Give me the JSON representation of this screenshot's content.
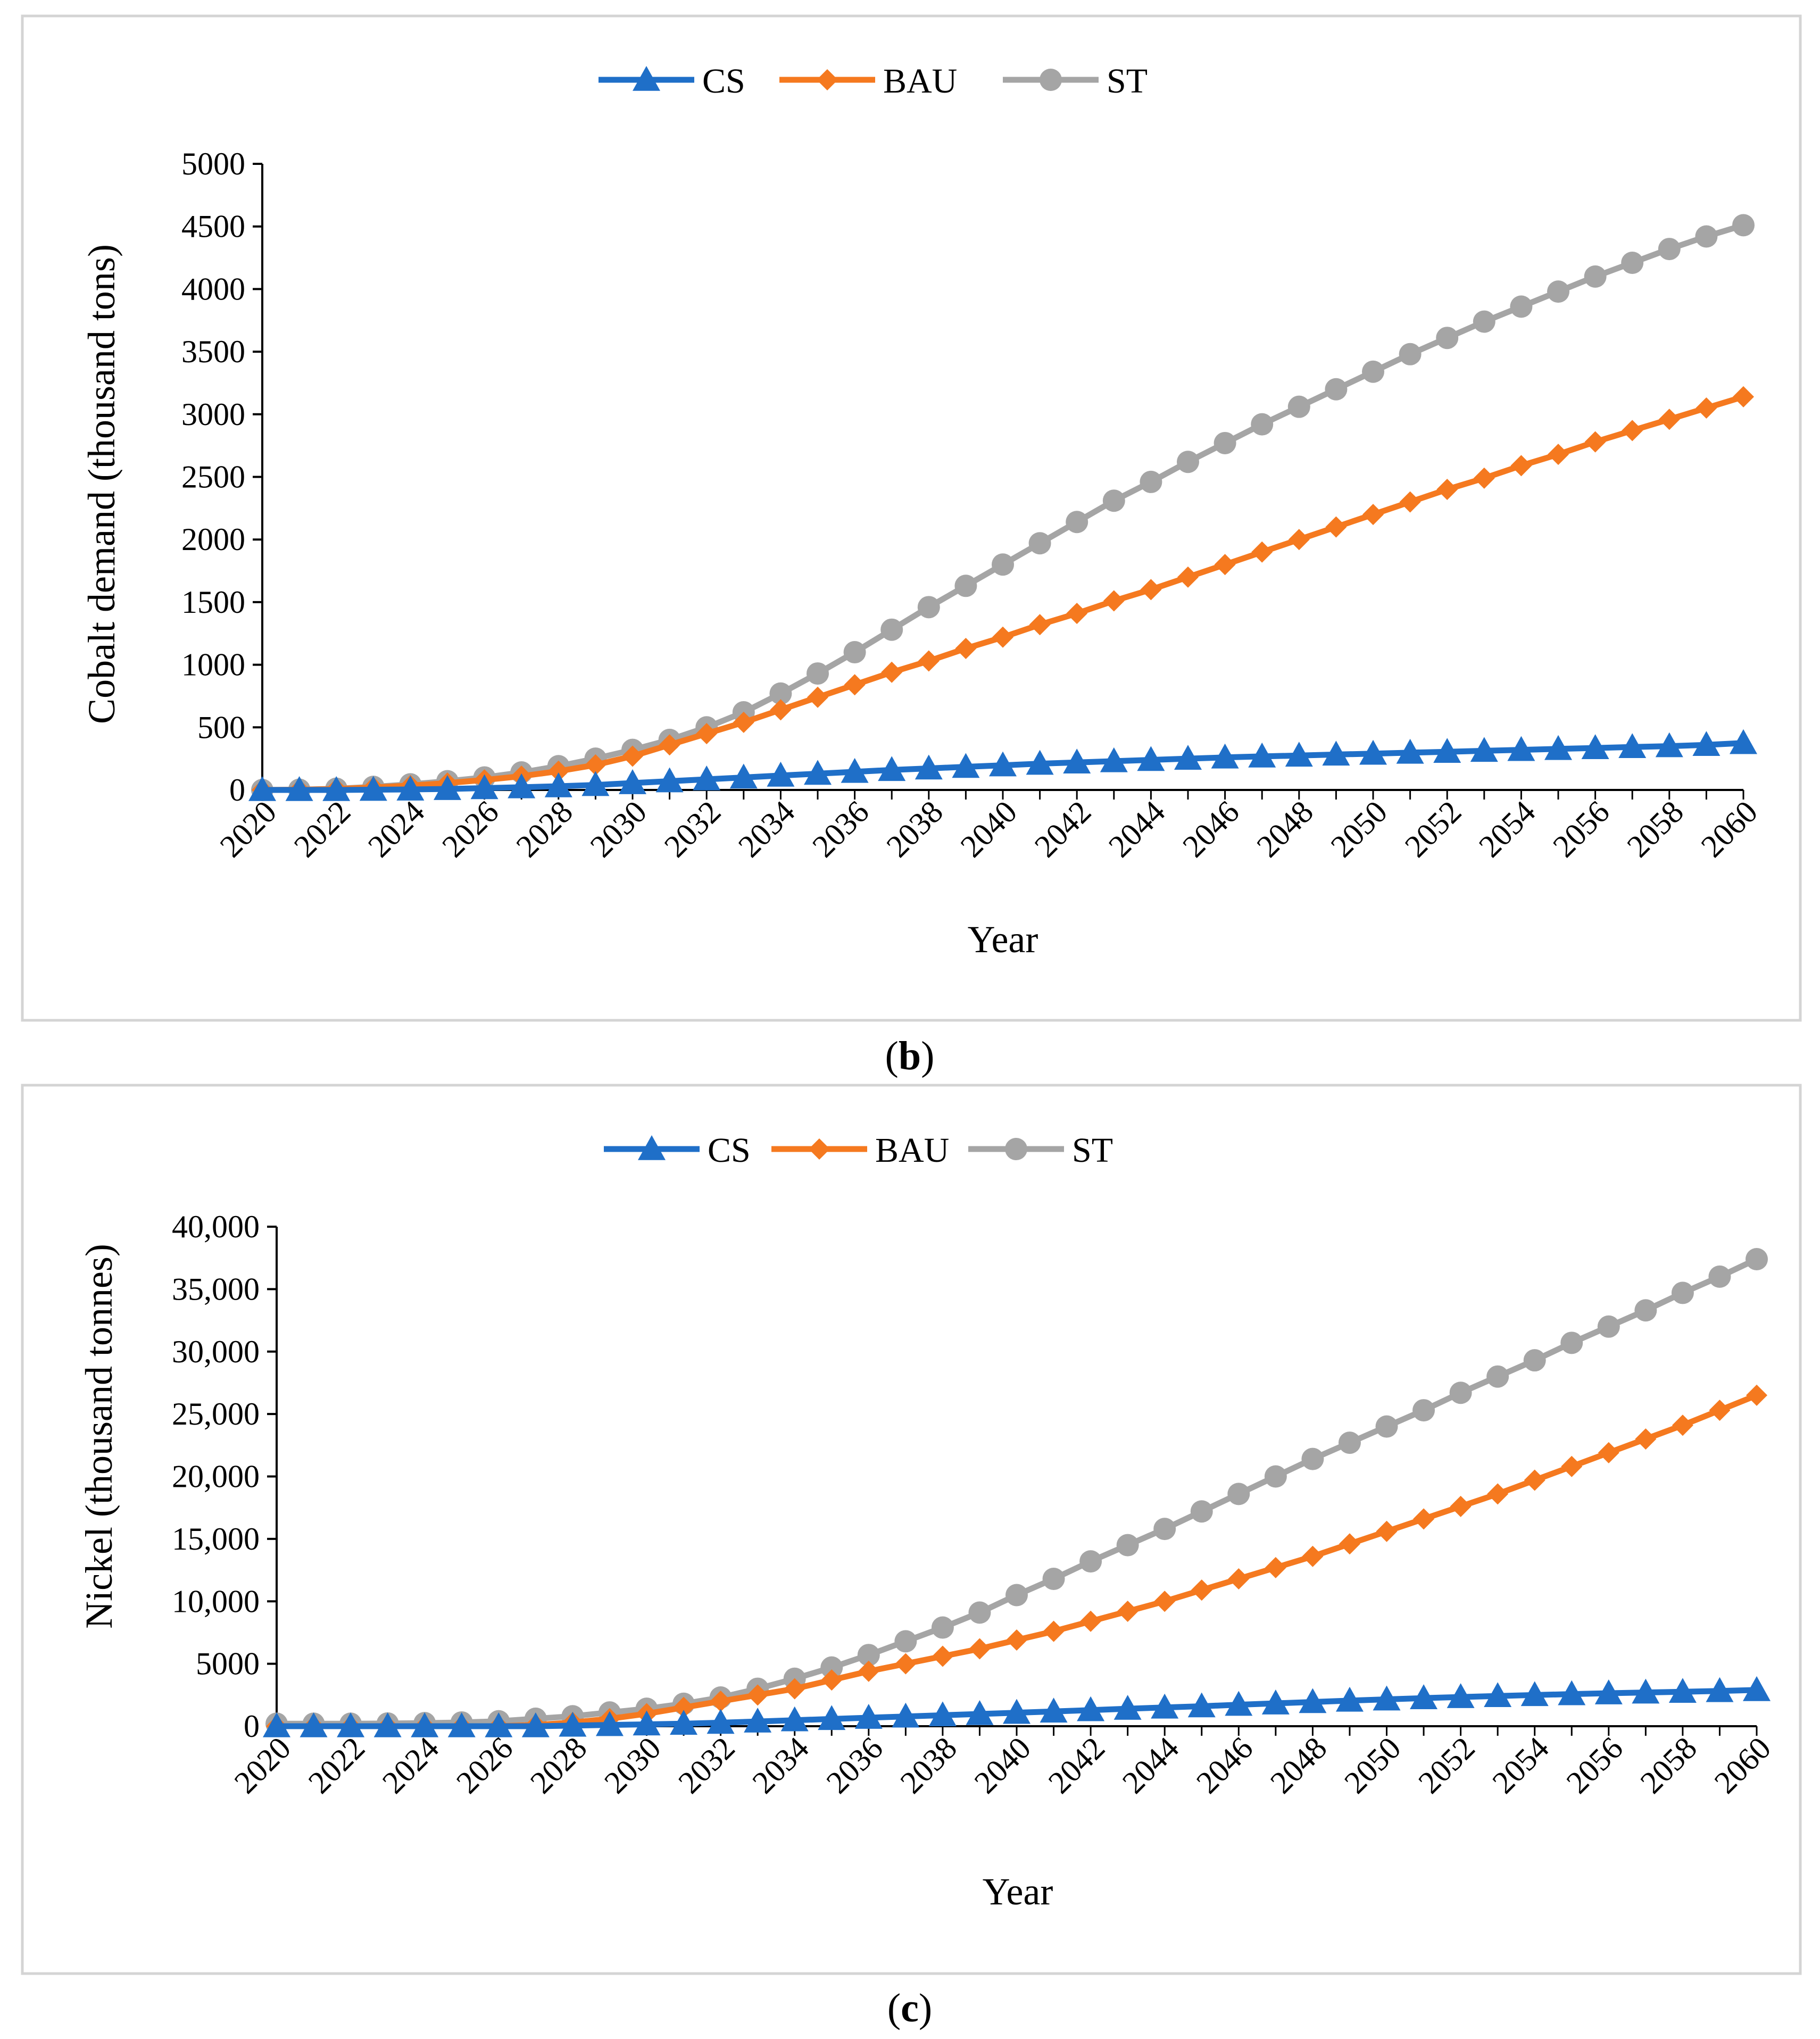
{
  "chart_data": [
    {
      "type": "line",
      "panel_label": "b",
      "x": [
        2020,
        2021,
        2022,
        2023,
        2024,
        2025,
        2026,
        2027,
        2028,
        2029,
        2030,
        2031,
        2032,
        2033,
        2034,
        2035,
        2036,
        2037,
        2038,
        2039,
        2040,
        2041,
        2042,
        2043,
        2044,
        2045,
        2046,
        2047,
        2048,
        2049,
        2050,
        2051,
        2052,
        2053,
        2054,
        2055,
        2056,
        2057,
        2058,
        2059,
        2060
      ],
      "x_ticks": [
        "2020",
        "2022",
        "2024",
        "2026",
        "2028",
        "2030",
        "2032",
        "2034",
        "2036",
        "2038",
        "2040",
        "2042",
        "2044",
        "2046",
        "2048",
        "2050",
        "2052",
        "2054",
        "2056",
        "2058",
        "2060"
      ],
      "y_ticks": [
        "0",
        "500",
        "1000",
        "1500",
        "2000",
        "2500",
        "3000",
        "3500",
        "4000",
        "4500",
        "5000"
      ],
      "ylim": [
        0,
        5000
      ],
      "xlabel": "Year",
      "ylabel": "Cobalt demand (thousand tons)",
      "legend_position": "top-center",
      "series": [
        {
          "name": "CS",
          "color": "#1f6fc8",
          "marker": "triangle",
          "values": [
            0,
            0,
            0,
            2,
            4,
            8,
            15,
            22,
            30,
            40,
            55,
            70,
            85,
            100,
            115,
            130,
            145,
            160,
            172,
            185,
            197,
            210,
            220,
            230,
            240,
            250,
            260,
            268,
            275,
            283,
            290,
            298,
            305,
            313,
            320,
            328,
            335,
            343,
            350,
            360,
            375
          ]
        },
        {
          "name": "BAU",
          "color": "#f5791f",
          "marker": "diamond",
          "values": [
            0,
            2,
            8,
            20,
            35,
            55,
            80,
            110,
            150,
            200,
            270,
            360,
            450,
            540,
            640,
            740,
            840,
            940,
            1030,
            1130,
            1220,
            1320,
            1410,
            1510,
            1600,
            1700,
            1800,
            1900,
            2000,
            2100,
            2200,
            2300,
            2400,
            2490,
            2590,
            2680,
            2780,
            2870,
            2960,
            3050,
            3140
          ]
        },
        {
          "name": "ST",
          "color": "#a5a5a5",
          "marker": "circle",
          "values": [
            0,
            2,
            10,
            25,
            45,
            70,
            100,
            140,
            190,
            250,
            320,
            400,
            500,
            620,
            770,
            930,
            1100,
            1280,
            1460,
            1630,
            1800,
            1970,
            2140,
            2310,
            2460,
            2620,
            2770,
            2920,
            3060,
            3200,
            3340,
            3480,
            3610,
            3740,
            3860,
            3980,
            4100,
            4210,
            4320,
            4420,
            4510
          ]
        }
      ]
    },
    {
      "type": "line",
      "panel_label": "c",
      "x": [
        2020,
        2021,
        2022,
        2023,
        2024,
        2025,
        2026,
        2027,
        2028,
        2029,
        2030,
        2031,
        2032,
        2033,
        2034,
        2035,
        2036,
        2037,
        2038,
        2039,
        2040,
        2041,
        2042,
        2043,
        2044,
        2045,
        2046,
        2047,
        2048,
        2049,
        2050,
        2051,
        2052,
        2053,
        2054,
        2055,
        2056,
        2057,
        2058,
        2059,
        2060
      ],
      "x_ticks": [
        "2020",
        "2022",
        "2024",
        "2026",
        "2028",
        "2030",
        "2032",
        "2034",
        "2036",
        "2038",
        "2040",
        "2042",
        "2044",
        "2046",
        "2048",
        "2050",
        "2052",
        "2054",
        "2056",
        "2058",
        "2060"
      ],
      "y_ticks": [
        "0",
        "5000",
        "10,000",
        "15,000",
        "20,000",
        "25,000",
        "30,000",
        "35,000",
        "40,000"
      ],
      "ylim": [
        0,
        40000
      ],
      "xlabel": "Year",
      "ylabel": "Nickel (thousand tonnes)",
      "legend_position": "top-center",
      "series": [
        {
          "name": "CS",
          "color": "#1f6fc8",
          "marker": "triangle",
          "values": [
            0,
            0,
            0,
            0,
            0,
            0,
            0,
            0,
            50,
            100,
            150,
            200,
            280,
            380,
            480,
            580,
            680,
            780,
            880,
            980,
            1080,
            1180,
            1290,
            1400,
            1500,
            1600,
            1720,
            1830,
            1940,
            2050,
            2150,
            2250,
            2340,
            2420,
            2500,
            2570,
            2640,
            2700,
            2760,
            2820,
            2900
          ]
        },
        {
          "name": "BAU",
          "color": "#f5791f",
          "marker": "diamond",
          "values": [
            0,
            0,
            0,
            0,
            0,
            0,
            0,
            100,
            300,
            600,
            1000,
            1500,
            2000,
            2500,
            3000,
            3700,
            4400,
            5000,
            5600,
            6200,
            6900,
            7600,
            8400,
            9200,
            10000,
            10900,
            11800,
            12700,
            13600,
            14600,
            15600,
            16600,
            17600,
            18600,
            19700,
            20800,
            21900,
            23000,
            24100,
            25300,
            26500
          ]
        },
        {
          "name": "ST",
          "color": "#a5a5a5",
          "marker": "circle",
          "values": [
            200,
            200,
            200,
            220,
            250,
            300,
            400,
            600,
            800,
            1100,
            1400,
            1800,
            2300,
            3000,
            3800,
            4700,
            5700,
            6800,
            7900,
            9100,
            10500,
            11800,
            13200,
            14500,
            15800,
            17200,
            18600,
            20000,
            21400,
            22700,
            24000,
            25300,
            26700,
            28000,
            29300,
            30700,
            32000,
            33300,
            34700,
            36000,
            37400
          ]
        }
      ]
    }
  ]
}
